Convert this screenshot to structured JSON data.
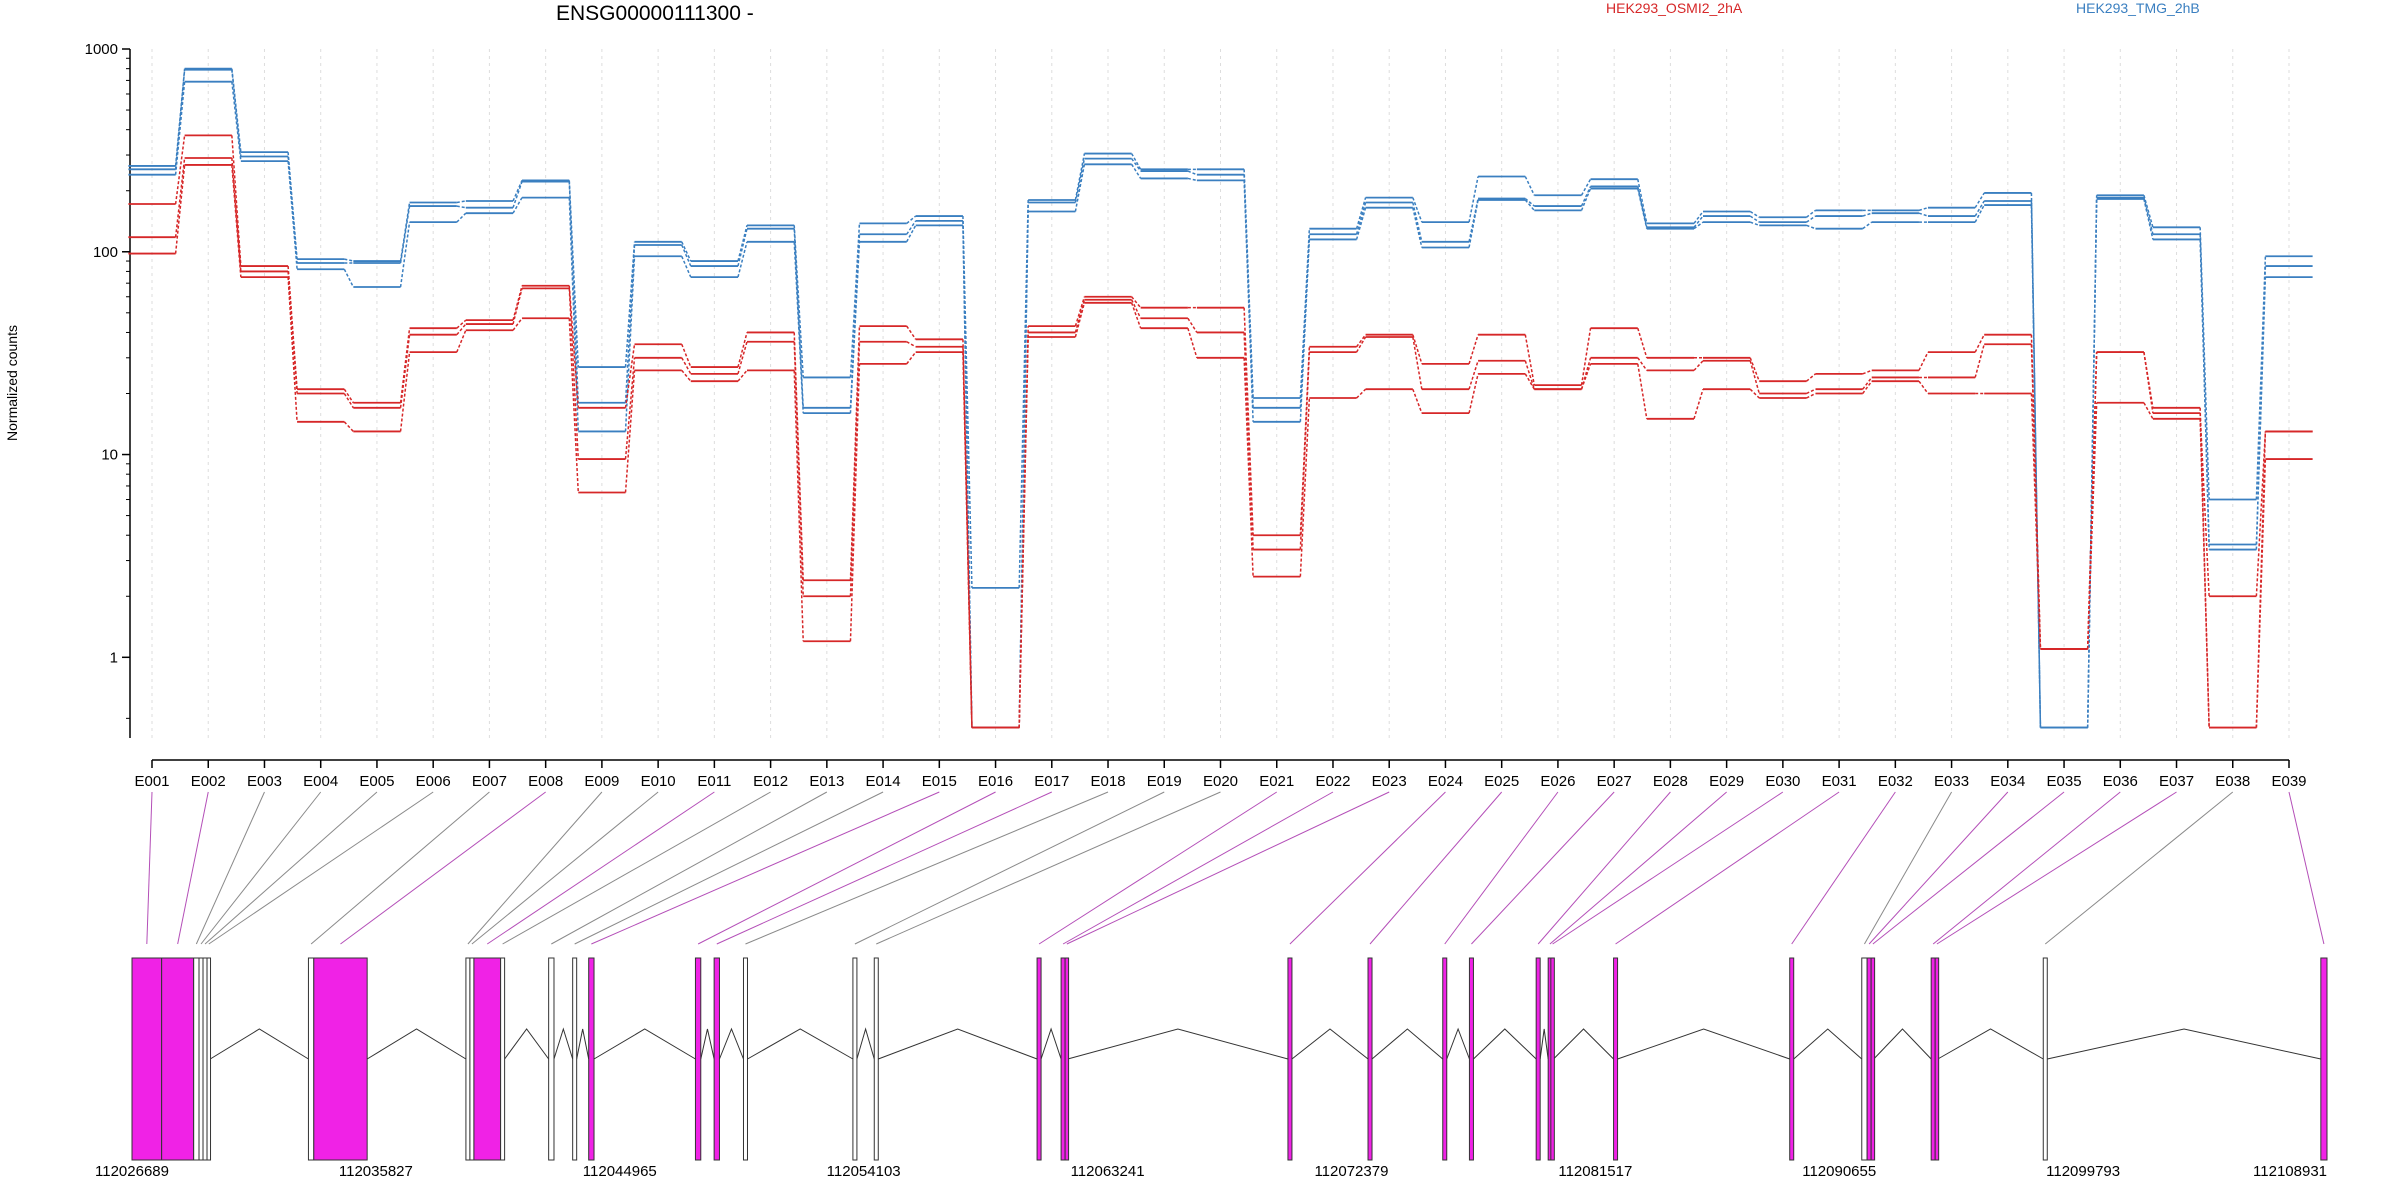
{
  "chart_data": {
    "type": "line",
    "title": "ENSG00000111300 -",
    "ylabel": "Normalized counts",
    "yscale": "log",
    "ylim": [
      0.4,
      1000
    ],
    "y_ticks": [
      1,
      10,
      100,
      1000
    ],
    "y_tick_labels": [
      "1",
      "10",
      "100",
      "1000"
    ],
    "grid": "vertical dashed",
    "legend_placement": "top",
    "categories": [
      "E001",
      "E002",
      "E003",
      "E004",
      "E005",
      "E006",
      "E007",
      "E008",
      "E009",
      "E010",
      "E011",
      "E012",
      "E013",
      "E014",
      "E015",
      "E016",
      "E017",
      "E018",
      "E019",
      "E020",
      "E021",
      "E022",
      "E023",
      "E024",
      "E025",
      "E026",
      "E027",
      "E028",
      "E029",
      "E030",
      "E031",
      "E032",
      "E033",
      "E034",
      "E035",
      "E036",
      "E037",
      "E038",
      "E039"
    ],
    "groups": [
      {
        "name": "HEK293_OSMI2_2hA",
        "color": "#d62728"
      },
      {
        "name": "HEK293_TMG_2hB",
        "color": "#3a7fc0"
      }
    ],
    "series": [
      {
        "group": "HEK293_TMG_2hB",
        "color": "#3a7fc0",
        "values": [
          265,
          800,
          310,
          92,
          90,
          175,
          178,
          225,
          27,
          112,
          90,
          135,
          24,
          138,
          150,
          2.2,
          180,
          305,
          255,
          255,
          19,
          130,
          185,
          140,
          235,
          190,
          228,
          138,
          158,
          148,
          160,
          160,
          165,
          195,
          0.45,
          190,
          132,
          6.0,
          95
        ]
      },
      {
        "group": "HEK293_TMG_2hB",
        "color": "#3a7fc0",
        "values": [
          255,
          790,
          295,
          88,
          88,
          168,
          165,
          222,
          18,
          108,
          85,
          130,
          17,
          122,
          142,
          0.45,
          175,
          288,
          250,
          240,
          17,
          122,
          175,
          112,
          183,
          168,
          210,
          132,
          150,
          140,
          150,
          155,
          150,
          178,
          0.45,
          185,
          122,
          3.4,
          85
        ]
      },
      {
        "group": "HEK293_TMG_2hB",
        "color": "#3a7fc0",
        "values": [
          240,
          690,
          280,
          82,
          67,
          140,
          155,
          185,
          13,
          95,
          75,
          112,
          16,
          112,
          135,
          0.45,
          158,
          270,
          230,
          225,
          14.5,
          115,
          165,
          105,
          180,
          160,
          205,
          130,
          140,
          135,
          130,
          140,
          140,
          170,
          0.45,
          182,
          115,
          3.6,
          75
        ]
      },
      {
        "group": "HEK293_OSMI2_2hA",
        "color": "#d62728",
        "values": [
          172,
          375,
          85,
          21,
          18,
          42,
          46,
          68,
          17,
          35,
          27,
          40,
          2.4,
          43,
          37,
          0.45,
          43,
          60,
          53,
          53,
          4.0,
          34,
          39,
          28,
          39,
          22,
          42,
          30,
          30,
          23,
          25,
          26,
          32,
          39,
          1.1,
          32,
          17,
          0.45,
          13
        ]
      },
      {
        "group": "HEK293_OSMI2_2hA",
        "color": "#d62728",
        "values": [
          118,
          290,
          80,
          20,
          17,
          39,
          44,
          66,
          9.5,
          30,
          25,
          36,
          2.0,
          36,
          34,
          0.45,
          40,
          58,
          47,
          40,
          3.4,
          32,
          38,
          21,
          29,
          21,
          30,
          26,
          29,
          20,
          21,
          24,
          24,
          35,
          1.1,
          32,
          16,
          2.0,
          13
        ]
      },
      {
        "group": "HEK293_OSMI2_2hA",
        "color": "#d62728",
        "values": [
          98,
          268,
          75,
          14.5,
          13,
          32,
          41,
          47,
          6.5,
          26,
          23,
          26,
          1.2,
          28,
          32,
          0.45,
          38,
          56,
          42,
          30,
          2.5,
          19,
          21,
          16,
          25,
          21,
          28,
          15,
          21,
          19,
          20,
          23,
          20,
          20,
          1.1,
          18,
          15,
          0.45,
          9.5
        ]
      }
    ],
    "gene_model": {
      "coordinate_range": [
        112026689,
        112108931
      ],
      "coordinate_labels": [
        "112026689",
        "112035827",
        "112044965",
        "112054103",
        "112063241",
        "112072379",
        "112081517",
        "112090655",
        "112099793",
        "112108931"
      ],
      "exons": [
        {
          "id": "E001",
          "start": 112026689,
          "end": 112027800,
          "highlight": true
        },
        {
          "id": "E002",
          "start": 112027800,
          "end": 112029000,
          "highlight": true
        },
        {
          "id": "E003",
          "start": 112029000,
          "end": 112029200,
          "highlight": false
        },
        {
          "id": "E004",
          "start": 112029200,
          "end": 112029350,
          "highlight": false
        },
        {
          "id": "E005",
          "start": 112029350,
          "end": 112029500,
          "highlight": false
        },
        {
          "id": "E006",
          "start": 112029500,
          "end": 112029620,
          "highlight": false
        },
        {
          "id": "E007",
          "start": 112033300,
          "end": 112033500,
          "highlight": false
        },
        {
          "id": "E008",
          "start": 112033500,
          "end": 112035500,
          "highlight": true
        },
        {
          "id": "E009",
          "start": 112039200,
          "end": 112039350,
          "highlight": false
        },
        {
          "id": "E010",
          "start": 112039350,
          "end": 112039500,
          "highlight": false
        },
        {
          "id": "E011",
          "start": 112039500,
          "end": 112040500,
          "highlight": true
        },
        {
          "id": "E012",
          "start": 112040500,
          "end": 112040650,
          "highlight": false
        },
        {
          "id": "E013",
          "start": 112042300,
          "end": 112042500,
          "highlight": false
        },
        {
          "id": "E014",
          "start": 112043200,
          "end": 112043350,
          "highlight": false
        },
        {
          "id": "E015",
          "start": 112043800,
          "end": 112044000,
          "highlight": true
        },
        {
          "id": "E016",
          "start": 112047800,
          "end": 112048000,
          "highlight": true
        },
        {
          "id": "E017",
          "start": 112048500,
          "end": 112048700,
          "highlight": true
        },
        {
          "id": "E018",
          "start": 112049600,
          "end": 112049750,
          "highlight": false
        },
        {
          "id": "E019",
          "start": 112053700,
          "end": 112053850,
          "highlight": false
        },
        {
          "id": "E020",
          "start": 112054500,
          "end": 112054650,
          "highlight": false
        },
        {
          "id": "E021",
          "start": 112060600,
          "end": 112060750,
          "highlight": true
        },
        {
          "id": "E022",
          "start": 112061500,
          "end": 112061650,
          "highlight": true
        },
        {
          "id": "E023",
          "start": 112061650,
          "end": 112061750,
          "highlight": true
        },
        {
          "id": "E024",
          "start": 112070000,
          "end": 112070150,
          "highlight": true
        },
        {
          "id": "E025",
          "start": 112073000,
          "end": 112073150,
          "highlight": true
        },
        {
          "id": "E026",
          "start": 112075800,
          "end": 112075950,
          "highlight": true
        },
        {
          "id": "E027",
          "start": 112076800,
          "end": 112076950,
          "highlight": true
        },
        {
          "id": "E028",
          "start": 112079300,
          "end": 112079450,
          "highlight": true
        },
        {
          "id": "E029",
          "start": 112079750,
          "end": 112079850,
          "highlight": true
        },
        {
          "id": "E030",
          "start": 112079850,
          "end": 112079950,
          "highlight": true
        },
        {
          "id": "E031",
          "start": 112082200,
          "end": 112082350,
          "highlight": true
        },
        {
          "id": "E032",
          "start": 112088800,
          "end": 112088950,
          "highlight": true
        },
        {
          "id": "E033",
          "start": 112091500,
          "end": 112091700,
          "highlight": false
        },
        {
          "id": "E034",
          "start": 112091700,
          "end": 112091850,
          "highlight": true
        },
        {
          "id": "E035",
          "start": 112091850,
          "end": 112091950,
          "highlight": true
        },
        {
          "id": "E036",
          "start": 112094100,
          "end": 112094250,
          "highlight": true
        },
        {
          "id": "E037",
          "start": 112094250,
          "end": 112094350,
          "highlight": true
        },
        {
          "id": "E038",
          "start": 112098300,
          "end": 112098450,
          "highlight": false
        },
        {
          "id": "E039",
          "start": 112108700,
          "end": 112108931,
          "highlight": true
        }
      ]
    }
  }
}
